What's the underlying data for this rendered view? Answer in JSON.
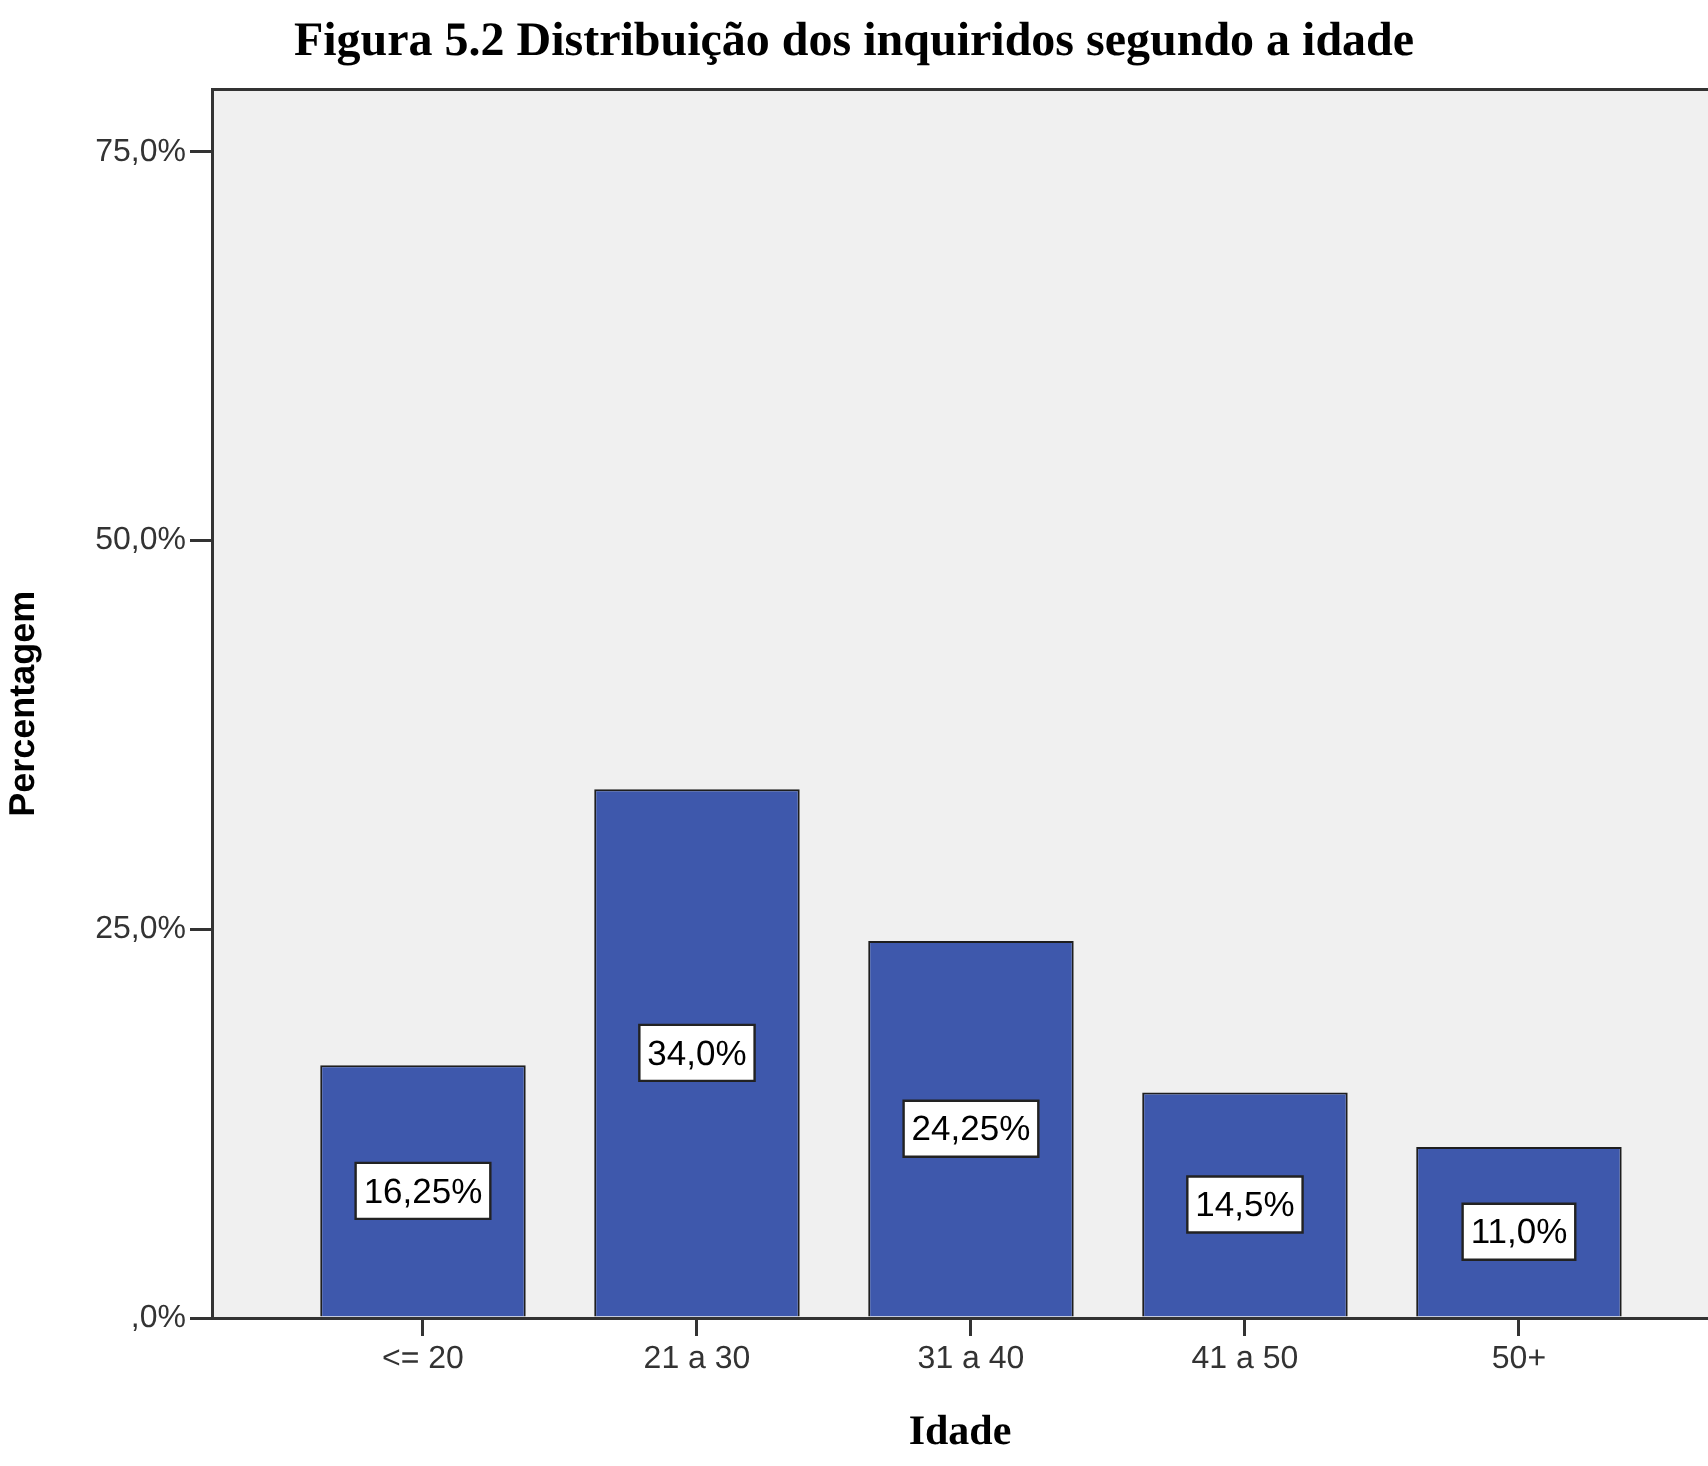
{
  "chart_data": {
    "type": "bar",
    "title": "Figura 5.2 Distribuição dos inquiridos segundo a idade",
    "xlabel": "Idade",
    "ylabel": "Percentagem",
    "categories": [
      "<= 20",
      "21 a 30",
      "31 a 40",
      "41 a 50",
      "50+"
    ],
    "values": [
      16.25,
      34,
      24.25,
      14.5,
      11
    ],
    "color": "#3e58ac",
    "value_labels": [
      "16,25%",
      "34,0%",
      "24,25%",
      "14,5%",
      "11,0%"
    ],
    "ylim": [
      0,
      79
    ],
    "yticks": [
      {
        "value": 0,
        "label": ",0%"
      },
      {
        "value": 25,
        "label": "25,0%"
      },
      {
        "value": 50,
        "label": "50,0%"
      },
      {
        "value": 75,
        "label": "75,0%"
      }
    ]
  }
}
